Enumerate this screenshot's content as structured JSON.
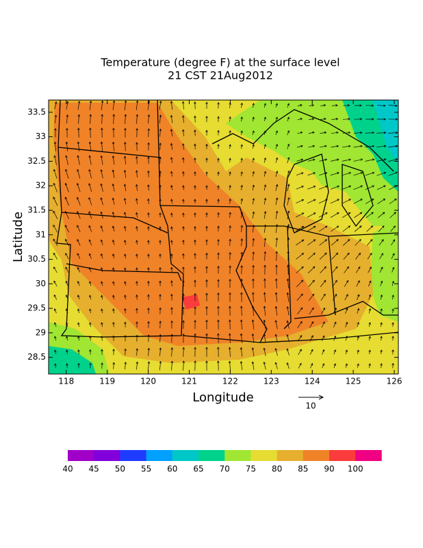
{
  "chart_data": {
    "type": "contour-map",
    "title": "Temperature (degree F) at the surface level",
    "subtitle": "21 CST 21Aug2012",
    "x_label": "Longitude",
    "y_label": "Latitude",
    "xlim": [
      117.57,
      126.1
    ],
    "xticks": [
      118,
      119,
      120,
      121,
      122,
      123,
      124,
      125,
      126
    ],
    "ylim": [
      28.16,
      33.75
    ],
    "yticks": [
      28.5,
      29,
      29.5,
      30,
      30.5,
      31,
      31.5,
      32,
      32.5,
      33,
      33.5
    ],
    "vector_scale_label": "10",
    "colorbar": {
      "labels": [
        40,
        45,
        50,
        55,
        60,
        65,
        70,
        75,
        80,
        85,
        90,
        100
      ],
      "colors": [
        "#a000c8",
        "#8200dc",
        "#1e3cff",
        "#00a0ff",
        "#00c8c8",
        "#00d28c",
        "#a0e632",
        "#e6dc32",
        "#e6af2d",
        "#f08228",
        "#fa3c3c",
        "#f00082"
      ]
    }
  }
}
